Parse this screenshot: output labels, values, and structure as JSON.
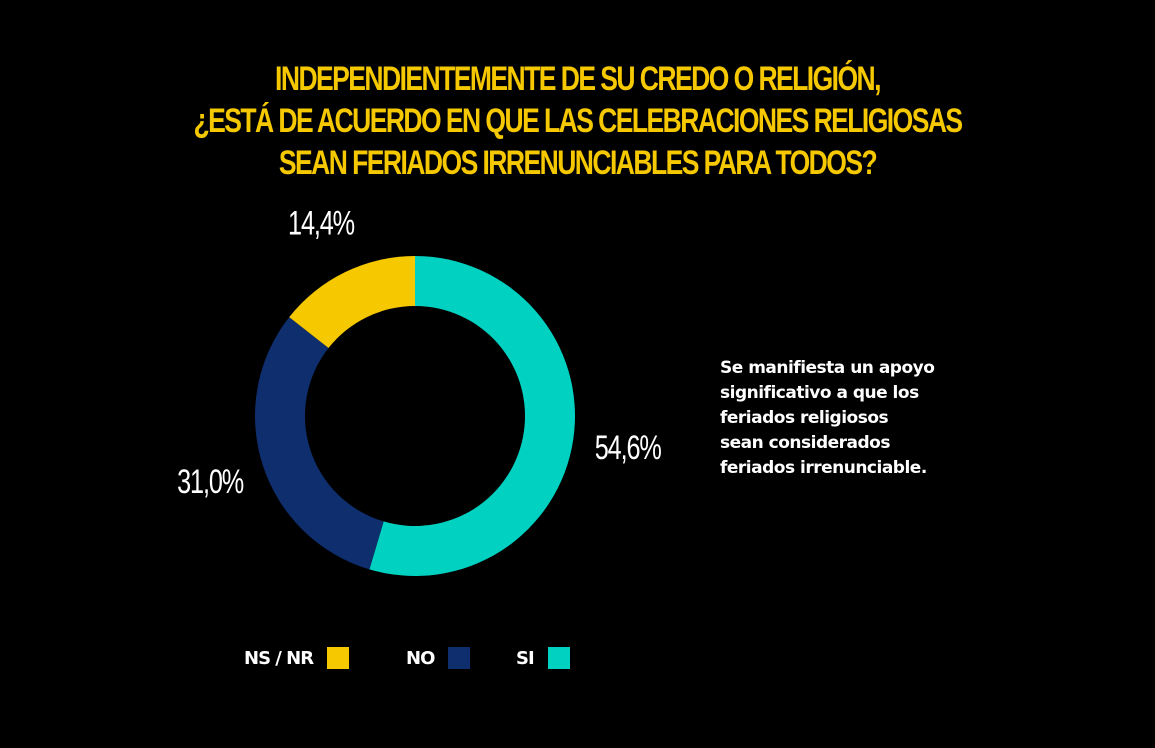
{
  "title_lines": [
    "INDEPENDIENTEMENTE DE SU CREDO O RELIGIÓN,",
    "¿ESTÁ DE ACUERDO EN QUE LAS CELEBRACIONES RELIGIOSAS",
    "SEAN FERIADOS IRRENUNCIABLES PARA TODOS?"
  ],
  "colors": {
    "title": "#F5C800",
    "ns_nr": "#F5C800",
    "no": "#0E2E6E",
    "si": "#00D1C1"
  },
  "note_lines": [
    "Se manifiesta un apoyo",
    "significativo a que los",
    "feriados religiosos",
    "sean considerados",
    "feriados irrenunciable."
  ],
  "legend": [
    {
      "label": "NS / NR",
      "color": "#F5C800"
    },
    {
      "label": "NO",
      "color": "#0E2E6E"
    },
    {
      "label": "SI",
      "color": "#00D1C1"
    }
  ],
  "chart_data": {
    "type": "pie",
    "style": "donut",
    "title": "INDEPENDIENTEMENTE DE SU CREDO O RELIGIÓN, ¿ESTÁ DE ACUERDO EN QUE LAS CELEBRACIONES RELIGIOSAS SEAN FERIADOS IRRENUNCIABLES PARA TODOS?",
    "categories": [
      "SI",
      "NO",
      "NS / NR"
    ],
    "values": [
      54.6,
      31.0,
      14.4
    ],
    "labels": [
      "54,6%",
      "31,0%",
      "14,4%"
    ],
    "colors": [
      "#00D1C1",
      "#0E2E6E",
      "#F5C800"
    ],
    "start_angle_deg": 0,
    "direction": "clockwise",
    "legend_position": "bottom"
  }
}
